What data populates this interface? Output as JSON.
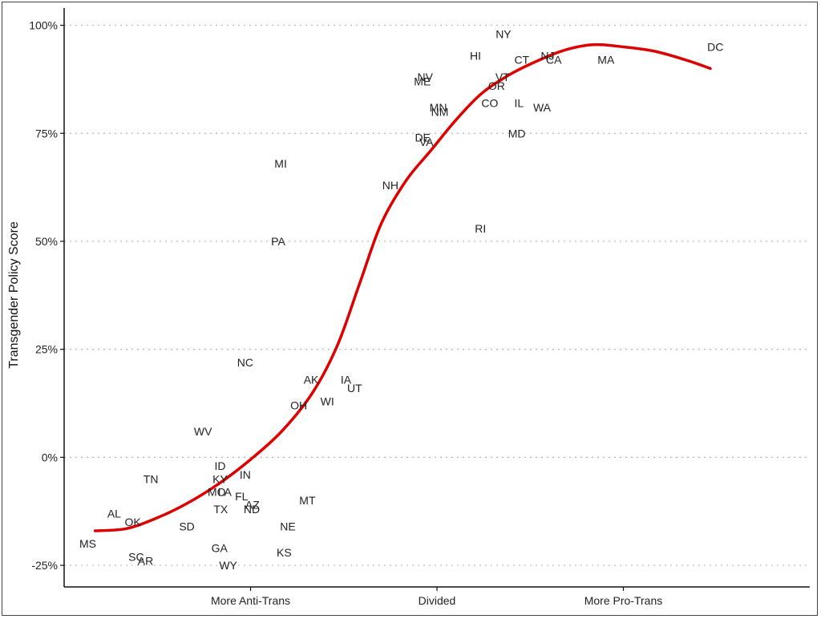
{
  "chart_data": {
    "type": "scatter",
    "ylabel": "Transgender Policy Score",
    "xlabel": "",
    "ylim": [
      -30,
      104
    ],
    "xlim": [
      -1.2,
      1.2
    ],
    "y_ticks": [
      {
        "value": 100,
        "label": "100%"
      },
      {
        "value": 75,
        "label": "75%"
      },
      {
        "value": 50,
        "label": "50%"
      },
      {
        "value": 25,
        "label": "25%"
      },
      {
        "value": 0,
        "label": "0%"
      },
      {
        "value": -25,
        "label": "-25%"
      }
    ],
    "x_ticks": [
      {
        "value": -0.6,
        "label": "More Anti-Trans"
      },
      {
        "value": 0,
        "label": "Divided"
      },
      {
        "value": 0.6,
        "label": "More Pro-Trans"
      }
    ],
    "grid": "horizontal-dotted",
    "points": [
      {
        "label": "NY",
        "x": 0.214,
        "y": 98
      },
      {
        "label": "DC",
        "x": 0.896,
        "y": 95
      },
      {
        "label": "HI",
        "x": 0.124,
        "y": 93
      },
      {
        "label": "NJ",
        "x": 0.356,
        "y": 93
      },
      {
        "label": "CT",
        "x": 0.273,
        "y": 92
      },
      {
        "label": "CA",
        "x": 0.376,
        "y": 92
      },
      {
        "label": "MA",
        "x": 0.544,
        "y": 92
      },
      {
        "label": "NV",
        "x": -0.038,
        "y": 88
      },
      {
        "label": "VT",
        "x": 0.211,
        "y": 88
      },
      {
        "label": "ME",
        "x": -0.047,
        "y": 87
      },
      {
        "label": "OR",
        "x": 0.192,
        "y": 86
      },
      {
        "label": "CO",
        "x": 0.17,
        "y": 82
      },
      {
        "label": "IL",
        "x": 0.264,
        "y": 82
      },
      {
        "label": "WA",
        "x": 0.338,
        "y": 81
      },
      {
        "label": "MN",
        "x": 0.004,
        "y": 81
      },
      {
        "label": "NM",
        "x": 0.009,
        "y": 80
      },
      {
        "label": "MD",
        "x": 0.257,
        "y": 75
      },
      {
        "label": "DE",
        "x": -0.046,
        "y": 74
      },
      {
        "label": "VA",
        "x": -0.034,
        "y": 73
      },
      {
        "label": "MI",
        "x": -0.503,
        "y": 68
      },
      {
        "label": "NH",
        "x": -0.15,
        "y": 63
      },
      {
        "label": "RI",
        "x": 0.14,
        "y": 53
      },
      {
        "label": "PA",
        "x": -0.511,
        "y": 50
      },
      {
        "label": "NC",
        "x": -0.617,
        "y": 22
      },
      {
        "label": "AK",
        "x": -0.405,
        "y": 18
      },
      {
        "label": "IA",
        "x": -0.293,
        "y": 18
      },
      {
        "label": "UT",
        "x": -0.265,
        "y": 16
      },
      {
        "label": "WI",
        "x": -0.353,
        "y": 13
      },
      {
        "label": "OH",
        "x": -0.445,
        "y": 12
      },
      {
        "label": "WV",
        "x": -0.753,
        "y": 6
      },
      {
        "label": "ID",
        "x": -0.698,
        "y": -2
      },
      {
        "label": "IN",
        "x": -0.617,
        "y": -4
      },
      {
        "label": "TN",
        "x": -0.921,
        "y": -5
      },
      {
        "label": "KY",
        "x": -0.698,
        "y": -5
      },
      {
        "label": "MO",
        "x": -0.709,
        "y": -8
      },
      {
        "label": "LA",
        "x": -0.683,
        "y": -8
      },
      {
        "label": "FL",
        "x": -0.629,
        "y": -9
      },
      {
        "label": "AZ",
        "x": -0.594,
        "y": -11
      },
      {
        "label": "MT",
        "x": -0.417,
        "y": -10
      },
      {
        "label": "TX",
        "x": -0.696,
        "y": -12
      },
      {
        "label": "ND",
        "x": -0.596,
        "y": -12
      },
      {
        "label": "AL",
        "x": -1.039,
        "y": -13
      },
      {
        "label": "OK",
        "x": -0.979,
        "y": -15
      },
      {
        "label": "SD",
        "x": -0.805,
        "y": -16
      },
      {
        "label": "NE",
        "x": -0.48,
        "y": -16
      },
      {
        "label": "MS",
        "x": -1.124,
        "y": -20
      },
      {
        "label": "GA",
        "x": -0.7,
        "y": -21
      },
      {
        "label": "KS",
        "x": -0.492,
        "y": -22
      },
      {
        "label": "SC",
        "x": -0.968,
        "y": -23
      },
      {
        "label": "AR",
        "x": -0.938,
        "y": -24
      },
      {
        "label": "WY",
        "x": -0.672,
        "y": -25
      }
    ],
    "trend_line": {
      "color": "#dd0000",
      "points": [
        [
          -1.1,
          -17
        ],
        [
          -1.0,
          -16.5
        ],
        [
          -0.9,
          -14
        ],
        [
          -0.8,
          -10.5
        ],
        [
          -0.7,
          -6
        ],
        [
          -0.6,
          -0.5
        ],
        [
          -0.5,
          6
        ],
        [
          -0.4,
          15
        ],
        [
          -0.32,
          26
        ],
        [
          -0.25,
          40
        ],
        [
          -0.18,
          54
        ],
        [
          -0.1,
          64
        ],
        [
          -0.02,
          71
        ],
        [
          0.06,
          78
        ],
        [
          0.14,
          84
        ],
        [
          0.22,
          88
        ],
        [
          0.3,
          91
        ],
        [
          0.4,
          94
        ],
        [
          0.5,
          95.5
        ],
        [
          0.6,
          95
        ],
        [
          0.7,
          94
        ],
        [
          0.8,
          92
        ],
        [
          0.88,
          90
        ]
      ]
    }
  }
}
